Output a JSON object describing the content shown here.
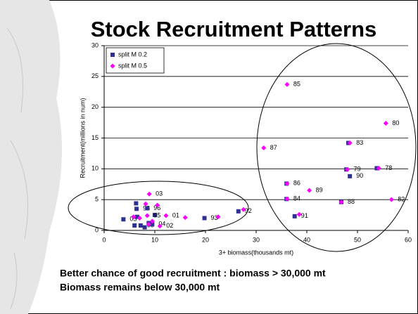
{
  "chart_data": {
    "type": "scatter",
    "title": "Stock Recruitment Patterns",
    "xlabel": "3+ biomass(thousands mt)",
    "ylabel": "Recruitment(millions in num)",
    "xlim": [
      0,
      60
    ],
    "xticks": [
      0,
      10,
      20,
      30,
      40,
      50,
      60
    ],
    "ylim": [
      0,
      30
    ],
    "yticks": [
      0,
      5,
      10,
      15,
      20,
      25,
      30
    ],
    "grid": true,
    "legend": "upper-left",
    "series": [
      {
        "name": "split M 0.2",
        "color": "#2e3192",
        "marker": "square",
        "x": [
          3.8,
          6.0,
          6.3,
          6.4,
          6.5,
          7.2,
          8.0,
          8.5,
          8.8,
          9.5,
          10.0,
          19.8,
          26.5,
          37.6,
          48.5,
          53.8,
          48.2,
          47.8,
          36.0,
          36.0,
          46.8
        ],
        "values": [
          1.8,
          0.8,
          4.4,
          3.5,
          2.2,
          0.8,
          0.5,
          3.6,
          1.2,
          1.0,
          2.5,
          2.0,
          3.1,
          2.3,
          8.8,
          10.1,
          14.2,
          9.9,
          7.6,
          5.1,
          4.6
        ],
        "labels": [
          "05",
          null,
          null,
          "98",
          null,
          "00",
          null,
          "96",
          null,
          "04",
          null,
          "93",
          "92",
          "91",
          "90",
          null,
          null,
          null,
          null,
          null,
          null
        ]
      },
      {
        "name": "split M 0.5",
        "color": "#ff00ff",
        "marker": "diamond",
        "x": [
          36.1,
          55.6,
          48.5,
          31.5,
          48.0,
          54.2,
          36.1,
          40.5,
          36.1,
          46.8,
          56.7,
          8.9,
          12.2,
          8.5,
          5.8,
          7.0,
          9.5,
          11.0,
          16.0,
          27.5,
          38.5,
          10.5,
          8.2,
          22.5,
          8.8
        ],
        "values": [
          23.7,
          17.4,
          14.2,
          13.4,
          9.9,
          10.1,
          7.6,
          6.5,
          5.1,
          4.6,
          5.0,
          5.9,
          2.4,
          2.4,
          2.2,
          2.0,
          1.5,
          0.7,
          2.1,
          3.4,
          2.6,
          4.1,
          4.3,
          2.2,
          1.0
        ],
        "labels": [
          "85",
          "80",
          "83",
          "87",
          "79",
          "78",
          "86",
          "89",
          "84",
          "88",
          "82",
          "03",
          "01",
          "95",
          null,
          null,
          null,
          "02",
          null,
          null,
          null,
          null,
          null,
          null,
          null
        ]
      }
    ],
    "notes": [
      "Better chance of good recruitment : biomass > 30,000 mt",
      "Biomass remains below 30,000 mt"
    ]
  }
}
